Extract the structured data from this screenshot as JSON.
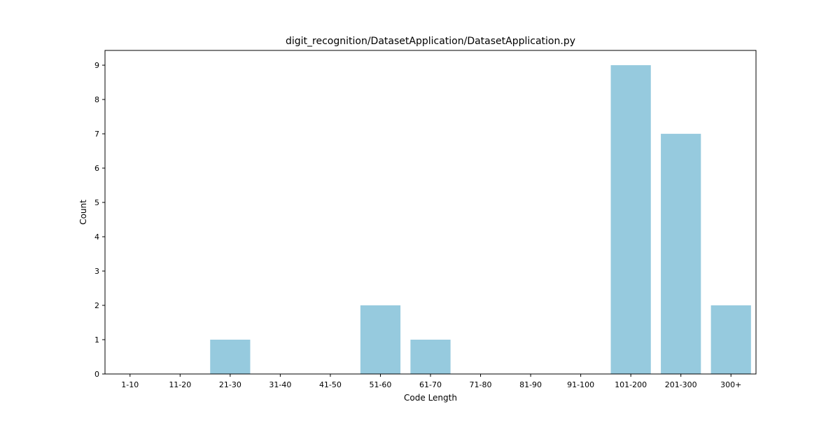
{
  "chart_data": {
    "type": "bar",
    "title": "digit_recognition/DatasetApplication/DatasetApplication.py",
    "xlabel": "Code Length",
    "ylabel": "Count",
    "categories": [
      "1-10",
      "11-20",
      "21-30",
      "31-40",
      "41-50",
      "51-60",
      "61-70",
      "71-80",
      "81-90",
      "91-100",
      "101-200",
      "201-300",
      "300+"
    ],
    "values": [
      0,
      0,
      1,
      0,
      0,
      2,
      1,
      0,
      0,
      0,
      9,
      7,
      2
    ],
    "ylim": [
      0,
      9.43
    ],
    "yticks": [
      0,
      1,
      2,
      3,
      4,
      5,
      6,
      7,
      8,
      9
    ],
    "grid": false,
    "bar_color": "#96cade"
  }
}
